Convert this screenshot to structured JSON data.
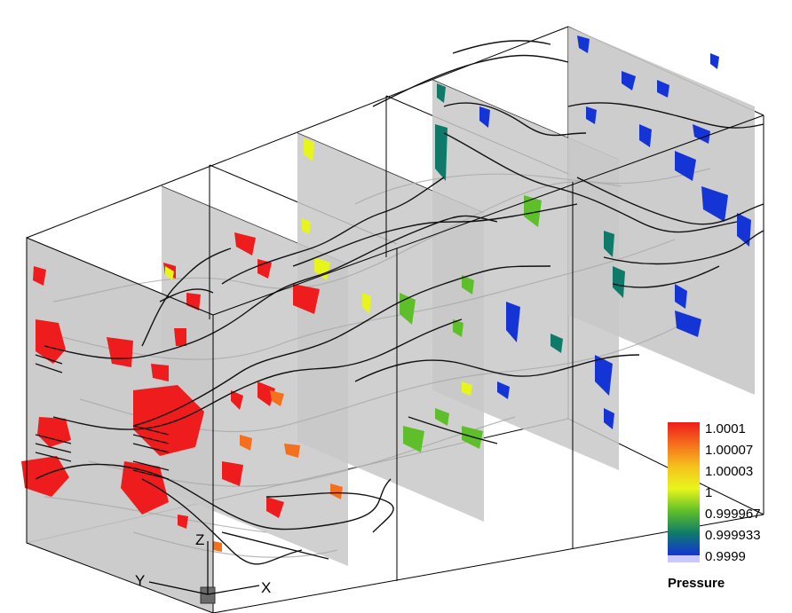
{
  "legend": {
    "title": "Pressure",
    "entries": [
      {
        "label": "1.0001",
        "color": "#ee1c1c"
      },
      {
        "label": "1.00007",
        "color": "#f5701c"
      },
      {
        "label": "1.00003",
        "color": "#f5c21c"
      },
      {
        "label": "1",
        "color": "#e8f51c"
      },
      {
        "label": "0.999967",
        "color": "#5fbf2a"
      },
      {
        "label": "0.999933",
        "color": "#0f7a6a"
      },
      {
        "label": "0.9999",
        "color": "#1434d6"
      }
    ]
  },
  "axes": {
    "x": "X",
    "y": "Y",
    "z": "Z"
  },
  "colors": {
    "slice": "#c8c8c8",
    "box_edge": "#000000",
    "streamline": "#111111",
    "ghost_streamline": "#a9a9a9",
    "high": "#ee1c1c",
    "mid_high": "#f5701c",
    "neutral": "#e8f51c",
    "mid_low": "#5fbf2a",
    "teal": "#0f7a6a",
    "low": "#1434d6"
  }
}
